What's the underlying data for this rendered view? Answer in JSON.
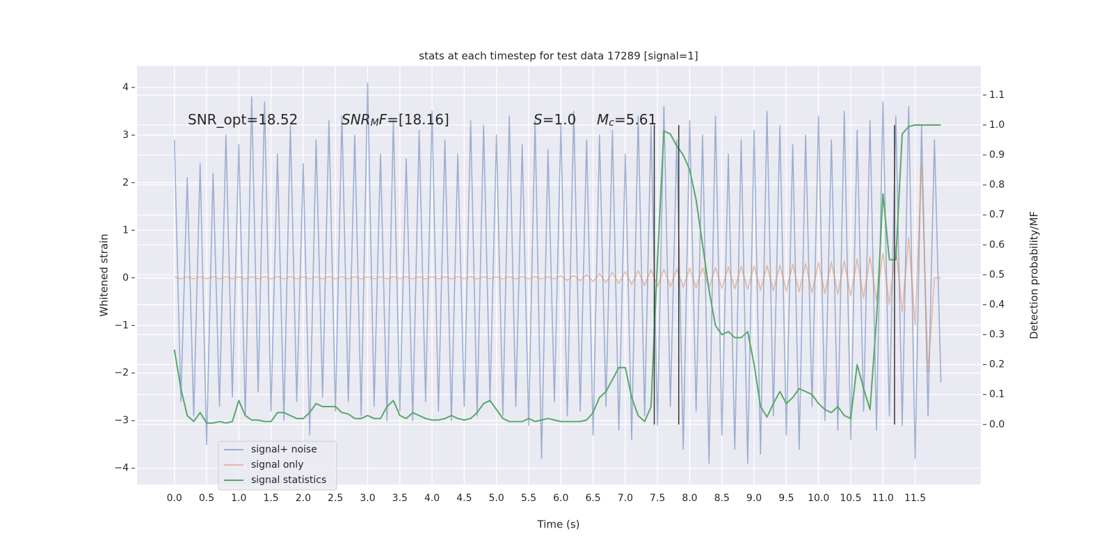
{
  "chart_data": {
    "type": "line",
    "title": "stats at each timestep for test data 17289 [signal=1]",
    "xlabel": "Time (s)",
    "ylabel": "Whitened strain",
    "y2label": "Detection probability/MF",
    "xlim": [
      -0.58,
      12.52
    ],
    "ylim": [
      -4.34,
      4.45
    ],
    "y2lim": [
      -0.2,
      1.197
    ],
    "xticks": [
      {
        "value": 0,
        "label": "0.0"
      },
      0.5,
      {
        "value": 1,
        "label": "1.0"
      },
      1.5,
      {
        "value": 2,
        "label": "2.0"
      },
      2.5,
      {
        "value": 3,
        "label": "3.0"
      },
      3.5,
      {
        "value": 4,
        "label": "4.0"
      },
      4.5,
      {
        "value": 5,
        "label": "5.0"
      },
      5.5,
      {
        "value": 6,
        "label": "6.0"
      },
      6.5,
      {
        "value": 7,
        "label": "7.0"
      },
      7.5,
      {
        "value": 8,
        "label": "8.0"
      },
      8.5,
      {
        "value": 9,
        "label": "9.0"
      },
      9.5,
      {
        "value": 10,
        "label": "10.0"
      },
      10.5,
      {
        "value": 11,
        "label": "11.0"
      },
      11.5
    ],
    "yticks": [
      {
        "value": -4,
        "label": "−4"
      },
      {
        "value": -3,
        "label": "−3"
      },
      {
        "value": -2,
        "label": "−2"
      },
      {
        "value": -1,
        "label": "−1"
      },
      0,
      1,
      2,
      3,
      4
    ],
    "y2ticks": [
      {
        "value": 0,
        "label": "0.0"
      },
      0.1,
      0.2,
      0.3,
      0.4,
      0.5,
      0.6,
      0.7,
      0.8,
      0.9,
      {
        "value": 1,
        "label": "1.0"
      },
      1.1
    ],
    "grid": true,
    "legend": "lower left",
    "annotations": [
      {
        "parts": [
          {
            "text": "SNR_opt=18.52"
          }
        ]
      },
      {
        "parts": [
          {
            "text": "SNR",
            "italic": true
          },
          {
            "text": "M",
            "italic": true,
            "sub": true
          },
          {
            "text": "F",
            "italic": true
          },
          {
            "text": "=[18.16]"
          }
        ]
      },
      {
        "parts": [
          {
            "text": "S",
            "italic": true
          },
          {
            "text": "=1.0"
          }
        ]
      },
      {
        "parts": [
          {
            "text": "M",
            "italic": true
          },
          {
            "text": "c",
            "italic": true,
            "sub": true
          },
          {
            "text": "=5.61"
          }
        ]
      }
    ],
    "vlines": {
      "x": [
        7.45,
        7.83,
        11.18
      ],
      "y2": [
        0,
        1
      ],
      "color": "#333333"
    },
    "x": [
      0.0,
      0.1,
      0.2,
      0.3,
      0.4,
      0.5,
      0.6,
      0.7,
      0.8,
      0.9,
      1.0,
      1.1,
      1.2,
      1.3,
      1.4,
      1.5,
      1.6,
      1.7,
      1.8,
      1.9,
      2.0,
      2.1,
      2.2,
      2.3,
      2.4,
      2.5,
      2.6,
      2.7,
      2.8,
      2.9,
      3.0,
      3.1,
      3.2,
      3.3,
      3.4,
      3.5,
      3.6,
      3.7,
      3.8,
      3.9,
      4.0,
      4.1,
      4.2,
      4.3,
      4.4,
      4.5,
      4.6,
      4.7,
      4.8,
      4.9,
      5.0,
      5.1,
      5.2,
      5.3,
      5.4,
      5.5,
      5.6,
      5.7,
      5.8,
      5.9,
      6.0,
      6.1,
      6.2,
      6.3,
      6.4,
      6.5,
      6.6,
      6.7,
      6.8,
      6.9,
      7.0,
      7.1,
      7.2,
      7.3,
      7.4,
      7.5,
      7.6,
      7.7,
      7.8,
      7.9,
      8.0,
      8.1,
      8.2,
      8.3,
      8.4,
      8.5,
      8.6,
      8.7,
      8.8,
      8.9,
      9.0,
      9.1,
      9.2,
      9.3,
      9.4,
      9.5,
      9.6,
      9.7,
      9.8,
      9.9,
      10.0,
      10.1,
      10.2,
      10.3,
      10.4,
      10.5,
      10.6,
      10.7,
      10.8,
      10.9,
      11.0,
      11.1,
      11.2,
      11.3,
      11.4,
      11.5,
      11.6,
      11.7,
      11.8,
      11.9
    ],
    "series": [
      {
        "name": "signal+ noise",
        "color": "#4c72b0",
        "opacity": 0.5,
        "values": [
          2.9,
          -2.6,
          2.1,
          -2.9,
          2.4,
          -3.5,
          2.2,
          -2.7,
          3.0,
          -2.5,
          2.8,
          -2.9,
          3.8,
          -2.4,
          3.7,
          -2.8,
          2.6,
          -3.0,
          3.2,
          -2.6,
          2.4,
          -3.3,
          2.9,
          -2.5,
          3.3,
          -2.8,
          3.4,
          -2.6,
          3.0,
          -2.9,
          4.1,
          -2.7,
          2.6,
          -3.0,
          3.3,
          -2.8,
          2.5,
          -3.0,
          3.1,
          -2.6,
          3.5,
          -2.8,
          2.9,
          -3.0,
          2.6,
          -2.7,
          3.3,
          -2.9,
          3.2,
          -2.6,
          3.0,
          -2.9,
          3.4,
          -2.7,
          2.8,
          -3.1,
          3.3,
          -3.8,
          2.7,
          -2.6,
          3.2,
          -2.9,
          3.5,
          -2.8,
          2.9,
          -3.3,
          3.0,
          -2.7,
          3.1,
          -3.2,
          2.6,
          -3.4,
          3.4,
          -2.9,
          3.2,
          -3.1,
          3.6,
          -2.7,
          2.9,
          -3.6,
          3.3,
          -2.8,
          3.0,
          -3.9,
          3.4,
          -3.3,
          2.6,
          -3.6,
          2.9,
          -3.9,
          3.1,
          -3.7,
          3.5,
          -2.9,
          3.2,
          -3.3,
          2.8,
          -3.6,
          3.0,
          -2.7,
          3.4,
          -3.0,
          2.9,
          -3.2,
          3.5,
          -3.4,
          3.1,
          -2.8,
          3.3,
          -3.2,
          3.7,
          -2.9,
          3.4,
          -3.1,
          3.6,
          -3.8,
          3.2,
          -2.9,
          2.9,
          -2.2
        ]
      },
      {
        "name": "signal only",
        "color": "#dd8452",
        "opacity": 0.5,
        "values": [
          0.02,
          -0.02,
          0.02,
          -0.02,
          0.02,
          -0.02,
          0.02,
          -0.02,
          0.02,
          -0.02,
          0.02,
          -0.02,
          0.02,
          -0.02,
          0.02,
          -0.02,
          0.02,
          -0.02,
          0.02,
          -0.02,
          0.02,
          -0.02,
          0.02,
          -0.02,
          0.02,
          -0.02,
          0.02,
          -0.02,
          0.02,
          -0.02,
          0.02,
          -0.02,
          0.02,
          -0.02,
          0.02,
          -0.02,
          0.02,
          -0.02,
          0.02,
          -0.02,
          0.02,
          -0.02,
          0.02,
          -0.02,
          0.02,
          -0.02,
          0.02,
          -0.02,
          0.02,
          -0.02,
          0.02,
          -0.02,
          0.02,
          -0.02,
          0.02,
          -0.02,
          0.02,
          -0.02,
          0.02,
          -0.02,
          0.04,
          -0.05,
          0.05,
          -0.06,
          0.07,
          -0.08,
          0.09,
          -0.1,
          0.11,
          -0.12,
          0.13,
          -0.14,
          0.15,
          -0.16,
          0.17,
          -0.18,
          0.18,
          -0.19,
          0.19,
          -0.2,
          0.2,
          -0.21,
          0.21,
          -0.22,
          0.22,
          -0.22,
          0.23,
          -0.23,
          0.24,
          -0.24,
          0.25,
          -0.26,
          0.26,
          -0.27,
          0.27,
          -0.28,
          0.29,
          -0.29,
          0.3,
          -0.31,
          0.32,
          -0.33,
          0.34,
          -0.35,
          0.36,
          -0.38,
          0.4,
          -0.42,
          0.44,
          -0.47,
          0.52,
          -0.57,
          0.65,
          -0.72,
          0.85,
          -1.0,
          2.4,
          -2.0,
          0.0,
          0.0
        ]
      },
      {
        "name": "signal statistics",
        "color": "#55a868",
        "opacity": 1,
        "axis": "y2",
        "values": [
          0.25,
          0.12,
          0.03,
          0.01,
          0.04,
          0.005,
          0.005,
          0.01,
          0.005,
          0.01,
          0.08,
          0.03,
          0.015,
          0.015,
          0.01,
          0.01,
          0.04,
          0.04,
          0.03,
          0.02,
          0.02,
          0.04,
          0.07,
          0.06,
          0.06,
          0.06,
          0.04,
          0.035,
          0.02,
          0.02,
          0.03,
          0.02,
          0.02,
          0.06,
          0.08,
          0.03,
          0.02,
          0.04,
          0.03,
          0.02,
          0.015,
          0.015,
          0.02,
          0.03,
          0.02,
          0.015,
          0.02,
          0.04,
          0.07,
          0.08,
          0.05,
          0.02,
          0.01,
          0.01,
          0.01,
          0.02,
          0.01,
          0.015,
          0.02,
          0.015,
          0.01,
          0.01,
          0.01,
          0.01,
          0.015,
          0.04,
          0.09,
          0.11,
          0.15,
          0.19,
          0.19,
          0.09,
          0.03,
          0.01,
          0.06,
          0.55,
          0.98,
          0.97,
          0.93,
          0.9,
          0.85,
          0.75,
          0.6,
          0.45,
          0.33,
          0.3,
          0.31,
          0.29,
          0.29,
          0.31,
          0.2,
          0.06,
          0.025,
          0.07,
          0.11,
          0.07,
          0.09,
          0.12,
          0.11,
          0.1,
          0.07,
          0.05,
          0.04,
          0.06,
          0.03,
          0.02,
          0.2,
          0.12,
          0.05,
          0.35,
          0.77,
          0.55,
          0.55,
          0.97,
          0.995,
          1.0,
          1.0,
          1.0,
          1.0,
          1.0
        ]
      }
    ]
  }
}
